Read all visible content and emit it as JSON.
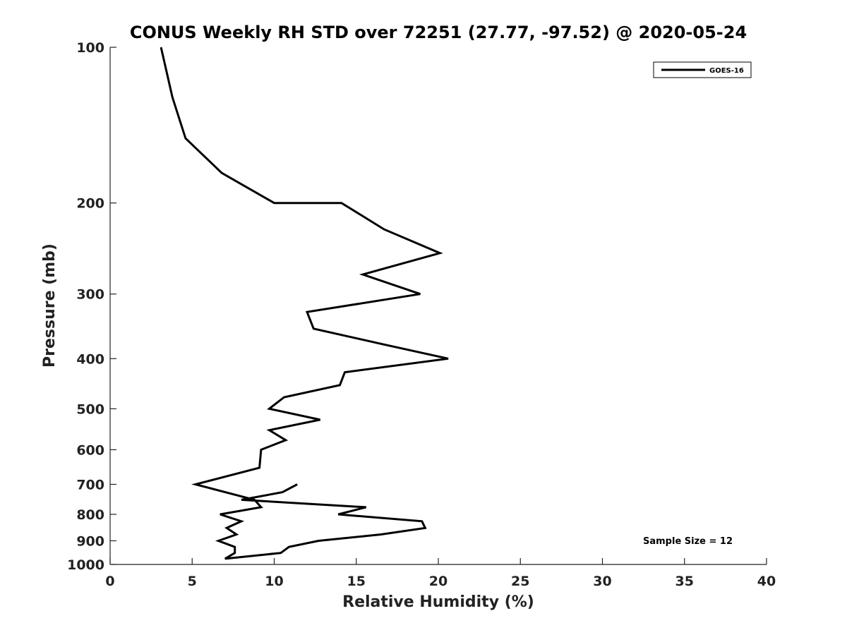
{
  "chart_data": {
    "type": "line",
    "title": "CONUS Weekly RH STD over 72251 (27.77, -97.52) @ 2020-05-24",
    "xlabel": "Relative Humidity (%)",
    "ylabel": "Pressure (mb)",
    "xlim": [
      0,
      40
    ],
    "ylim": [
      1000,
      100
    ],
    "y_scale": "log",
    "y_reversed": true,
    "grid": false,
    "legend_position": "top-right",
    "x_ticks": [
      0,
      5,
      10,
      15,
      20,
      25,
      30,
      35,
      40
    ],
    "y_ticks": [
      100,
      200,
      300,
      400,
      500,
      600,
      700,
      800,
      900,
      1000
    ],
    "series": [
      {
        "name": "GOES-16",
        "color": "#000000",
        "points": [
          [
            3.1,
            100
          ],
          [
            3.8,
            125
          ],
          [
            4.6,
            150
          ],
          [
            6.8,
            175
          ],
          [
            10.0,
            200
          ],
          [
            14.1,
            200
          ],
          [
            16.7,
            225
          ],
          [
            20.1,
            250
          ],
          [
            15.4,
            275
          ],
          [
            18.9,
            300
          ],
          [
            12.0,
            325
          ],
          [
            12.4,
            350
          ],
          [
            16.6,
            375
          ],
          [
            20.6,
            400
          ],
          [
            14.3,
            425
          ],
          [
            14.0,
            450
          ],
          [
            10.6,
            475
          ],
          [
            9.7,
            500
          ],
          [
            12.8,
            525
          ],
          [
            9.7,
            550
          ],
          [
            10.7,
            575
          ],
          [
            9.2,
            600
          ],
          [
            9.1,
            650
          ],
          [
            5.2,
            700
          ],
          [
            8.8,
            750
          ],
          [
            9.2,
            775
          ],
          [
            6.7,
            800
          ],
          [
            8.0,
            825
          ],
          [
            7.1,
            850
          ],
          [
            7.7,
            875
          ],
          [
            6.6,
            900
          ],
          [
            7.6,
            925
          ],
          [
            7.6,
            950
          ],
          [
            7.0,
            975
          ],
          [
            10.4,
            950
          ],
          [
            10.9,
            925
          ],
          [
            12.7,
            900
          ],
          [
            16.5,
            875
          ],
          [
            19.2,
            850
          ],
          [
            19.0,
            825
          ],
          [
            13.9,
            800
          ],
          [
            15.6,
            775
          ],
          [
            8.0,
            750
          ],
          [
            10.5,
            725
          ],
          [
            11.4,
            700
          ]
        ]
      }
    ],
    "annotations": [
      "Sample Size = 12"
    ]
  }
}
